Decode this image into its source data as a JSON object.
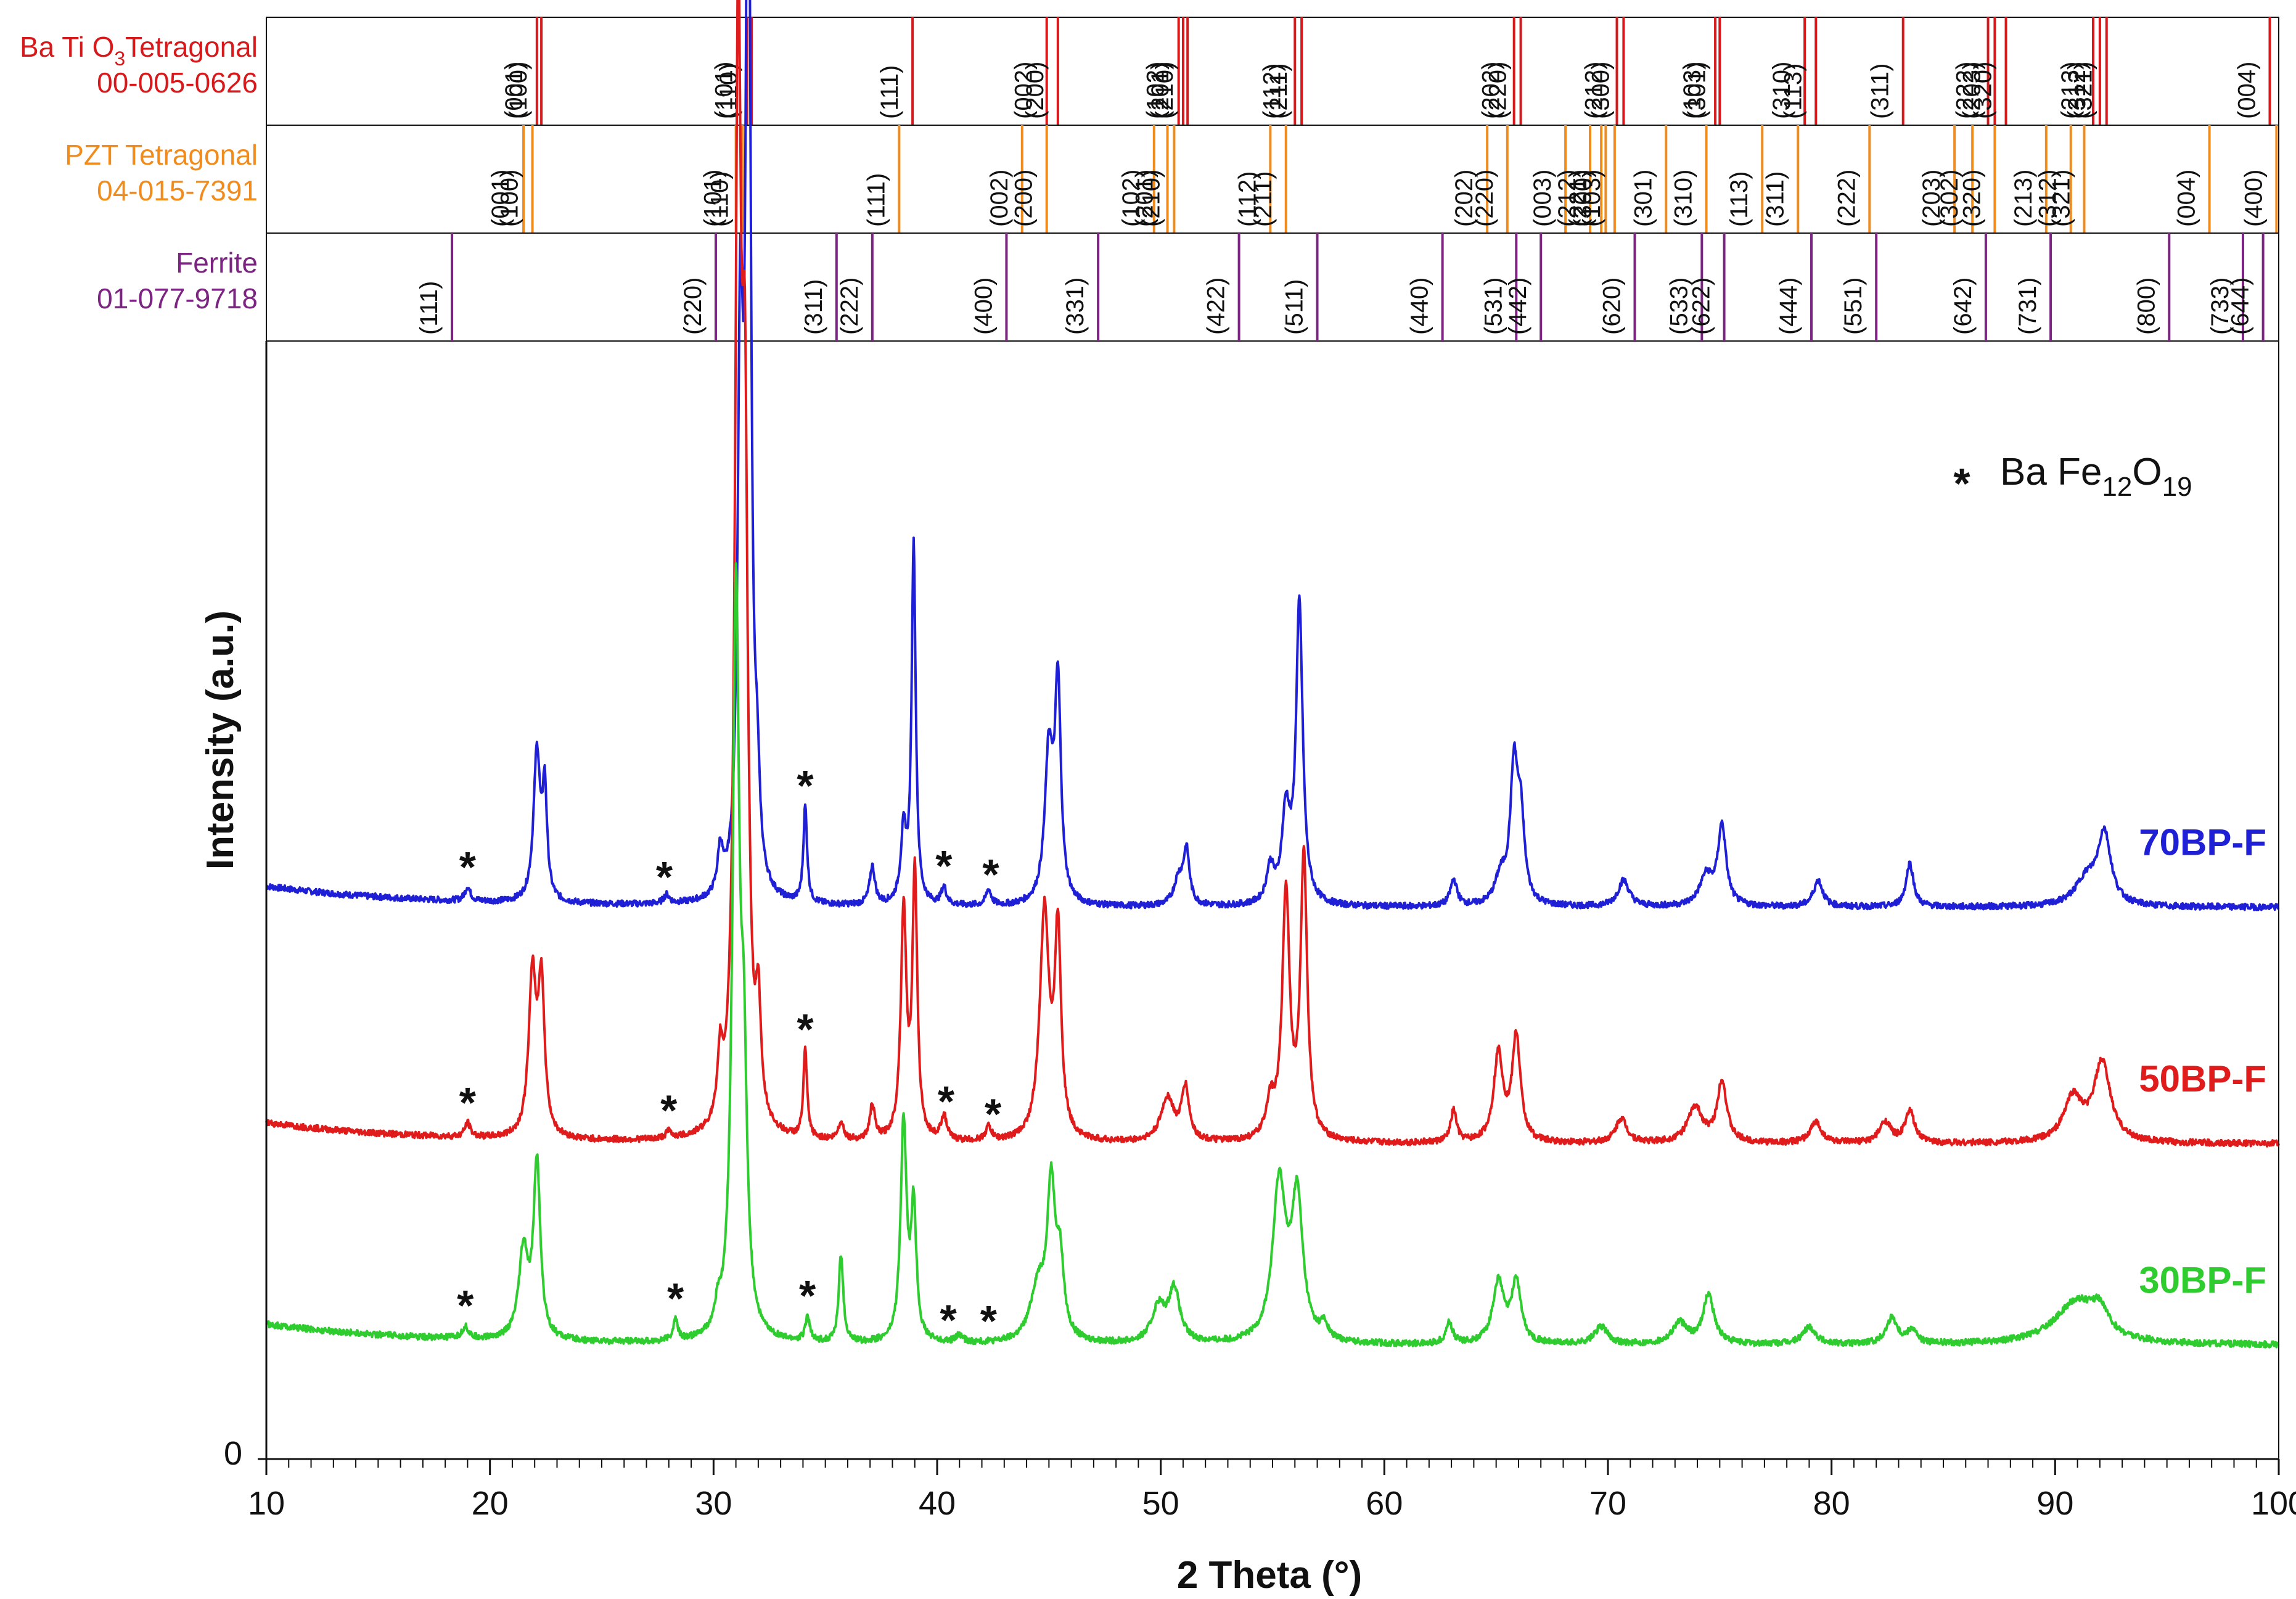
{
  "chart_data": {
    "type": "line",
    "xlabel": "2 Theta (°)",
    "ylabel": "Intensity (a.u.)",
    "xlim": [
      10,
      100
    ],
    "x_ticks": [
      10,
      20,
      30,
      40,
      50,
      60,
      70,
      80,
      90,
      100
    ],
    "y_tick_label": "0",
    "reference_panels": [
      {
        "key": "bto",
        "name": "Ba Ti O3 Tetragonal",
        "name_parts": [
          "Ba Ti O",
          "3",
          "Tetragonal"
        ],
        "code": "00-005-0626",
        "color": "#d7191c",
        "peaks": [
          {
            "x": 22.1,
            "hkl": "(001)"
          },
          {
            "x": 22.3,
            "hkl": "(100)"
          },
          {
            "x": 31.5,
            "hkl": "(101)"
          },
          {
            "x": 31.7,
            "hkl": "(110)"
          },
          {
            "x": 38.9,
            "hkl": "(111)"
          },
          {
            "x": 44.9,
            "hkl": "(002)"
          },
          {
            "x": 45.4,
            "hkl": "(200)"
          },
          {
            "x": 50.8,
            "hkl": "(102)"
          },
          {
            "x": 51.0,
            "hkl": "(201)"
          },
          {
            "x": 51.2,
            "hkl": "(210)"
          },
          {
            "x": 56.0,
            "hkl": "(112)"
          },
          {
            "x": 56.3,
            "hkl": "(211)"
          },
          {
            "x": 65.8,
            "hkl": "(202)"
          },
          {
            "x": 66.1,
            "hkl": "(220)"
          },
          {
            "x": 70.4,
            "hkl": "(212)"
          },
          {
            "x": 70.7,
            "hkl": "(300)"
          },
          {
            "x": 74.8,
            "hkl": "(103)"
          },
          {
            "x": 75.0,
            "hkl": "(301)"
          },
          {
            "x": 78.8,
            "hkl": "(310)"
          },
          {
            "x": 79.3,
            "hkl": "(113)"
          },
          {
            "x": 83.2,
            "hkl": "(311)"
          },
          {
            "x": 87.0,
            "hkl": "(222)"
          },
          {
            "x": 87.3,
            "hkl": "(203)"
          },
          {
            "x": 87.8,
            "hkl": "(320)"
          },
          {
            "x": 91.7,
            "hkl": "(213)"
          },
          {
            "x": 92.0,
            "hkl": "(312)"
          },
          {
            "x": 92.3,
            "hkl": "(321)"
          },
          {
            "x": 99.6,
            "hkl": "(004)"
          }
        ]
      },
      {
        "key": "pzt",
        "name": "PZT Tetragonal",
        "name_parts": [
          "PZT Tetragonal"
        ],
        "code": "04-015-7391",
        "color": "#f08c1e",
        "peaks": [
          {
            "x": 21.5,
            "hkl": "(001)"
          },
          {
            "x": 21.9,
            "hkl": "(100)"
          },
          {
            "x": 31.0,
            "hkl": "(101)"
          },
          {
            "x": 31.3,
            "hkl": "(110)"
          },
          {
            "x": 38.3,
            "hkl": "(111)"
          },
          {
            "x": 43.8,
            "hkl": "(002)"
          },
          {
            "x": 44.9,
            "hkl": "(200)"
          },
          {
            "x": 49.7,
            "hkl": "(102)"
          },
          {
            "x": 50.3,
            "hkl": "(201)"
          },
          {
            "x": 50.6,
            "hkl": "(210)"
          },
          {
            "x": 54.9,
            "hkl": "(112)"
          },
          {
            "x": 55.6,
            "hkl": "(211)"
          },
          {
            "x": 64.6,
            "hkl": "(202)"
          },
          {
            "x": 65.5,
            "hkl": "(220)"
          },
          {
            "x": 68.1,
            "hkl": "(003)"
          },
          {
            "x": 69.2,
            "hkl": "(212)"
          },
          {
            "x": 69.7,
            "hkl": "(221)"
          },
          {
            "x": 69.9,
            "hkl": "(300)"
          },
          {
            "x": 70.3,
            "hkl": "(103)"
          },
          {
            "x": 72.6,
            "hkl": "(301)"
          },
          {
            "x": 74.4,
            "hkl": "(310)"
          },
          {
            "x": 76.9,
            "hkl": "(113)"
          },
          {
            "x": 78.5,
            "hkl": "(311)"
          },
          {
            "x": 81.7,
            "hkl": "(222)"
          },
          {
            "x": 85.5,
            "hkl": "(203)"
          },
          {
            "x": 86.3,
            "hkl": "(302)"
          },
          {
            "x": 87.3,
            "hkl": "(320)"
          },
          {
            "x": 89.6,
            "hkl": "(213)"
          },
          {
            "x": 90.7,
            "hkl": "(312)"
          },
          {
            "x": 91.3,
            "hkl": "(321)"
          },
          {
            "x": 96.9,
            "hkl": "(004)"
          },
          {
            "x": 99.9,
            "hkl": "(400)"
          }
        ]
      },
      {
        "key": "ferrite",
        "name": "Ferrite",
        "name_parts": [
          "Ferrite"
        ],
        "code": "01-077-9718",
        "color": "#7b2481",
        "peaks": [
          {
            "x": 18.3,
            "hkl": "(111)"
          },
          {
            "x": 30.1,
            "hkl": "(220)"
          },
          {
            "x": 35.5,
            "hkl": "(311)"
          },
          {
            "x": 37.1,
            "hkl": "(222)"
          },
          {
            "x": 43.1,
            "hkl": "(400)"
          },
          {
            "x": 47.2,
            "hkl": "(331)"
          },
          {
            "x": 53.5,
            "hkl": "(422)"
          },
          {
            "x": 57.0,
            "hkl": "(511)"
          },
          {
            "x": 62.6,
            "hkl": "(440)"
          },
          {
            "x": 65.9,
            "hkl": "(531)"
          },
          {
            "x": 67.0,
            "hkl": "(442)"
          },
          {
            "x": 71.2,
            "hkl": "(620)"
          },
          {
            "x": 74.2,
            "hkl": "(533)"
          },
          {
            "x": 75.2,
            "hkl": "(622)"
          },
          {
            "x": 79.1,
            "hkl": "(444)"
          },
          {
            "x": 82.0,
            "hkl": "(551)"
          },
          {
            "x": 86.9,
            "hkl": "(642)"
          },
          {
            "x": 89.8,
            "hkl": "(731)"
          },
          {
            "x": 95.1,
            "hkl": "(800)"
          },
          {
            "x": 98.4,
            "hkl": "(733)"
          },
          {
            "x": 99.3,
            "hkl": "(644)"
          }
        ]
      }
    ],
    "series": [
      {
        "name": "70BP-F",
        "color": "#1f1fd6",
        "baseline": 0.315,
        "peaks": [
          [
            19.0,
            0.008,
            0.15
          ],
          [
            22.1,
            0.085,
            0.18
          ],
          [
            22.45,
            0.06,
            0.12
          ],
          [
            27.9,
            0.005,
            0.15
          ],
          [
            30.3,
            0.025,
            0.14
          ],
          [
            31.2,
            0.3,
            0.14
          ],
          [
            31.55,
            0.66,
            0.13
          ],
          [
            31.95,
            0.045,
            0.13
          ],
          [
            34.1,
            0.055,
            0.1
          ],
          [
            37.1,
            0.022,
            0.14
          ],
          [
            38.5,
            0.04,
            0.15
          ],
          [
            38.95,
            0.205,
            0.11
          ],
          [
            40.3,
            0.01,
            0.14
          ],
          [
            42.3,
            0.009,
            0.14
          ],
          [
            45.0,
            0.085,
            0.22
          ],
          [
            45.4,
            0.12,
            0.16
          ],
          [
            50.8,
            0.015,
            0.25
          ],
          [
            51.15,
            0.03,
            0.16
          ],
          [
            54.9,
            0.02,
            0.2
          ],
          [
            55.6,
            0.05,
            0.22
          ],
          [
            56.2,
            0.17,
            0.18
          ],
          [
            63.1,
            0.015,
            0.18
          ],
          [
            65.2,
            0.015,
            0.3
          ],
          [
            65.8,
            0.075,
            0.2
          ],
          [
            66.1,
            0.045,
            0.2
          ],
          [
            70.7,
            0.015,
            0.3
          ],
          [
            74.4,
            0.017,
            0.35
          ],
          [
            75.1,
            0.045,
            0.22
          ],
          [
            79.4,
            0.015,
            0.25
          ],
          [
            83.5,
            0.025,
            0.2
          ],
          [
            91.4,
            0.015,
            0.6
          ],
          [
            92.2,
            0.04,
            0.35
          ]
        ]
      },
      {
        "name": "50BP-F",
        "color": "#e01b1b",
        "baseline": 0.18,
        "peaks": [
          [
            19.0,
            0.008,
            0.15
          ],
          [
            21.9,
            0.09,
            0.2
          ],
          [
            22.3,
            0.085,
            0.17
          ],
          [
            28.0,
            0.004,
            0.15
          ],
          [
            30.3,
            0.035,
            0.13
          ],
          [
            31.1,
            0.6,
            0.16
          ],
          [
            31.4,
            0.35,
            0.16
          ],
          [
            32.0,
            0.06,
            0.13
          ],
          [
            34.1,
            0.05,
            0.1
          ],
          [
            35.7,
            0.01,
            0.15
          ],
          [
            37.1,
            0.02,
            0.13
          ],
          [
            38.5,
            0.13,
            0.15
          ],
          [
            39.0,
            0.15,
            0.13
          ],
          [
            40.3,
            0.014,
            0.15
          ],
          [
            42.3,
            0.008,
            0.15
          ],
          [
            44.8,
            0.13,
            0.25
          ],
          [
            45.4,
            0.115,
            0.17
          ],
          [
            50.3,
            0.025,
            0.35
          ],
          [
            51.1,
            0.03,
            0.2
          ],
          [
            54.9,
            0.02,
            0.22
          ],
          [
            55.6,
            0.14,
            0.2
          ],
          [
            56.4,
            0.16,
            0.18
          ],
          [
            63.1,
            0.018,
            0.16
          ],
          [
            65.1,
            0.05,
            0.25
          ],
          [
            65.9,
            0.06,
            0.22
          ],
          [
            70.6,
            0.014,
            0.3
          ],
          [
            73.9,
            0.02,
            0.4
          ],
          [
            75.1,
            0.035,
            0.25
          ],
          [
            79.3,
            0.012,
            0.3
          ],
          [
            82.4,
            0.012,
            0.3
          ],
          [
            83.5,
            0.018,
            0.25
          ],
          [
            90.8,
            0.025,
            0.5
          ],
          [
            92.1,
            0.045,
            0.45
          ]
        ]
      },
      {
        "name": "30BP-F",
        "color": "#2ecc2e",
        "baseline": 0.065,
        "peaks": [
          [
            18.9,
            0.007,
            0.15
          ],
          [
            21.5,
            0.05,
            0.25
          ],
          [
            22.1,
            0.1,
            0.18
          ],
          [
            28.3,
            0.012,
            0.12
          ],
          [
            30.2,
            0.012,
            0.15
          ],
          [
            31.0,
            0.42,
            0.18
          ],
          [
            31.35,
            0.13,
            0.17
          ],
          [
            34.2,
            0.014,
            0.12
          ],
          [
            35.7,
            0.05,
            0.12
          ],
          [
            38.5,
            0.125,
            0.16
          ],
          [
            38.95,
            0.075,
            0.14
          ],
          [
            41.0,
            0.004,
            0.2
          ],
          [
            44.5,
            0.03,
            0.4
          ],
          [
            45.1,
            0.085,
            0.22
          ],
          [
            45.5,
            0.04,
            0.2
          ],
          [
            49.9,
            0.02,
            0.35
          ],
          [
            50.6,
            0.03,
            0.3
          ],
          [
            55.3,
            0.09,
            0.35
          ],
          [
            56.1,
            0.08,
            0.3
          ],
          [
            57.3,
            0.008,
            0.2
          ],
          [
            62.9,
            0.012,
            0.18
          ],
          [
            65.1,
            0.035,
            0.3
          ],
          [
            65.9,
            0.035,
            0.25
          ],
          [
            69.7,
            0.01,
            0.35
          ],
          [
            73.2,
            0.012,
            0.4
          ],
          [
            74.5,
            0.028,
            0.3
          ],
          [
            79.0,
            0.01,
            0.35
          ],
          [
            82.7,
            0.015,
            0.3
          ],
          [
            83.6,
            0.008,
            0.25
          ],
          [
            91.0,
            0.025,
            1.2
          ],
          [
            92.0,
            0.012,
            0.4
          ]
        ]
      }
    ],
    "annotations": {
      "symbol": "*",
      "legend_text": "Ba Fe12O19",
      "legend_parts": [
        "Ba Fe",
        "12",
        "O",
        "19"
      ],
      "marks": [
        {
          "series": "70BP-F",
          "x": [
            19.0,
            27.8,
            34.1,
            40.3,
            42.4
          ]
        },
        {
          "series": "50BP-F",
          "x": [
            19.0,
            28.0,
            34.1,
            40.4,
            42.5
          ]
        },
        {
          "series": "30BP-F",
          "x": [
            18.9,
            28.3,
            34.2,
            40.5,
            42.3
          ]
        }
      ]
    }
  }
}
